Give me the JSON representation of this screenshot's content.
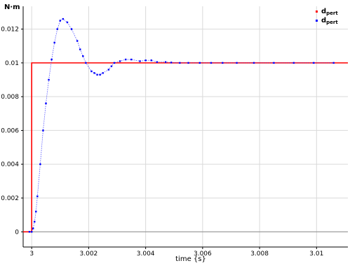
{
  "chart_data": {
    "type": "line",
    "title": "",
    "xlabel": "time {s}",
    "ylabel": "N·m",
    "xlim": [
      2.9997,
      3.0111
    ],
    "ylim": [
      -0.0009,
      0.01335
    ],
    "grid": true,
    "legend_position": "top-right",
    "x_ticks": [
      {
        "value": 3.0,
        "label": "3"
      },
      {
        "value": 3.002,
        "label": "3.002"
      },
      {
        "value": 3.004,
        "label": "3.004"
      },
      {
        "value": 3.006,
        "label": "3.006"
      },
      {
        "value": 3.008,
        "label": "3.008"
      },
      {
        "value": 3.01,
        "label": "3.01"
      }
    ],
    "y_ticks": [
      {
        "value": 0,
        "label": "0"
      },
      {
        "value": 0.002,
        "label": "0.002"
      },
      {
        "value": 0.004,
        "label": "0.004"
      },
      {
        "value": 0.006,
        "label": "0.006"
      },
      {
        "value": 0.008,
        "label": "0.008"
      },
      {
        "value": 0.01,
        "label": "0.01"
      },
      {
        "value": 0.012,
        "label": "0.012"
      }
    ],
    "series": [
      {
        "name": "dpert",
        "name_main": "d",
        "name_sub": "pert",
        "color": "#ff0000",
        "style": "solid",
        "x": [
          2.9997,
          2.99995,
          3.0,
          3.0,
          3.0111
        ],
        "y": [
          0,
          0,
          0,
          0.01,
          0.01
        ]
      },
      {
        "name": "dpert",
        "name_main": "d",
        "name_sub": "pert",
        "color": "#0000ff",
        "style": "dotted-markers",
        "x": [
          2.99992,
          3.0,
          3.00005,
          3.0001,
          3.00015,
          3.0002,
          3.0003,
          3.0004,
          3.0005,
          3.0006,
          3.0007,
          3.0008,
          3.0009,
          3.001,
          3.0011,
          3.00125,
          3.0014,
          3.0016,
          3.0017,
          3.0018,
          3.0019,
          3.0021,
          3.0022,
          3.0023,
          3.0024,
          3.0025,
          3.0027,
          3.0028,
          3.0029,
          3.0031,
          3.0033,
          3.0035,
          3.0038,
          3.004,
          3.0042,
          3.0044,
          3.0047,
          3.0049,
          3.0052,
          3.0055,
          3.0059,
          3.0063,
          3.0067,
          3.0072,
          3.0078,
          3.0085,
          3.0092,
          3.0099,
          3.0106
        ],
        "y": [
          0,
          0,
          0.0002,
          0.0006,
          0.0012,
          0.0021,
          0.004,
          0.006,
          0.0076,
          0.009,
          0.0102,
          0.0112,
          0.012,
          0.0125,
          0.0126,
          0.0124,
          0.012,
          0.0113,
          0.0108,
          0.0104,
          0.01,
          0.0095,
          0.0094,
          0.0093,
          0.0093,
          0.0094,
          0.0096,
          0.0098,
          0.01,
          0.0101,
          0.0102,
          0.0102,
          0.0101,
          0.01015,
          0.01015,
          0.01005,
          0.01005,
          0.01002,
          0.01,
          0.01,
          0.01,
          0.01,
          0.01,
          0.01,
          0.01,
          0.01,
          0.01,
          0.01,
          0.01
        ]
      }
    ]
  }
}
